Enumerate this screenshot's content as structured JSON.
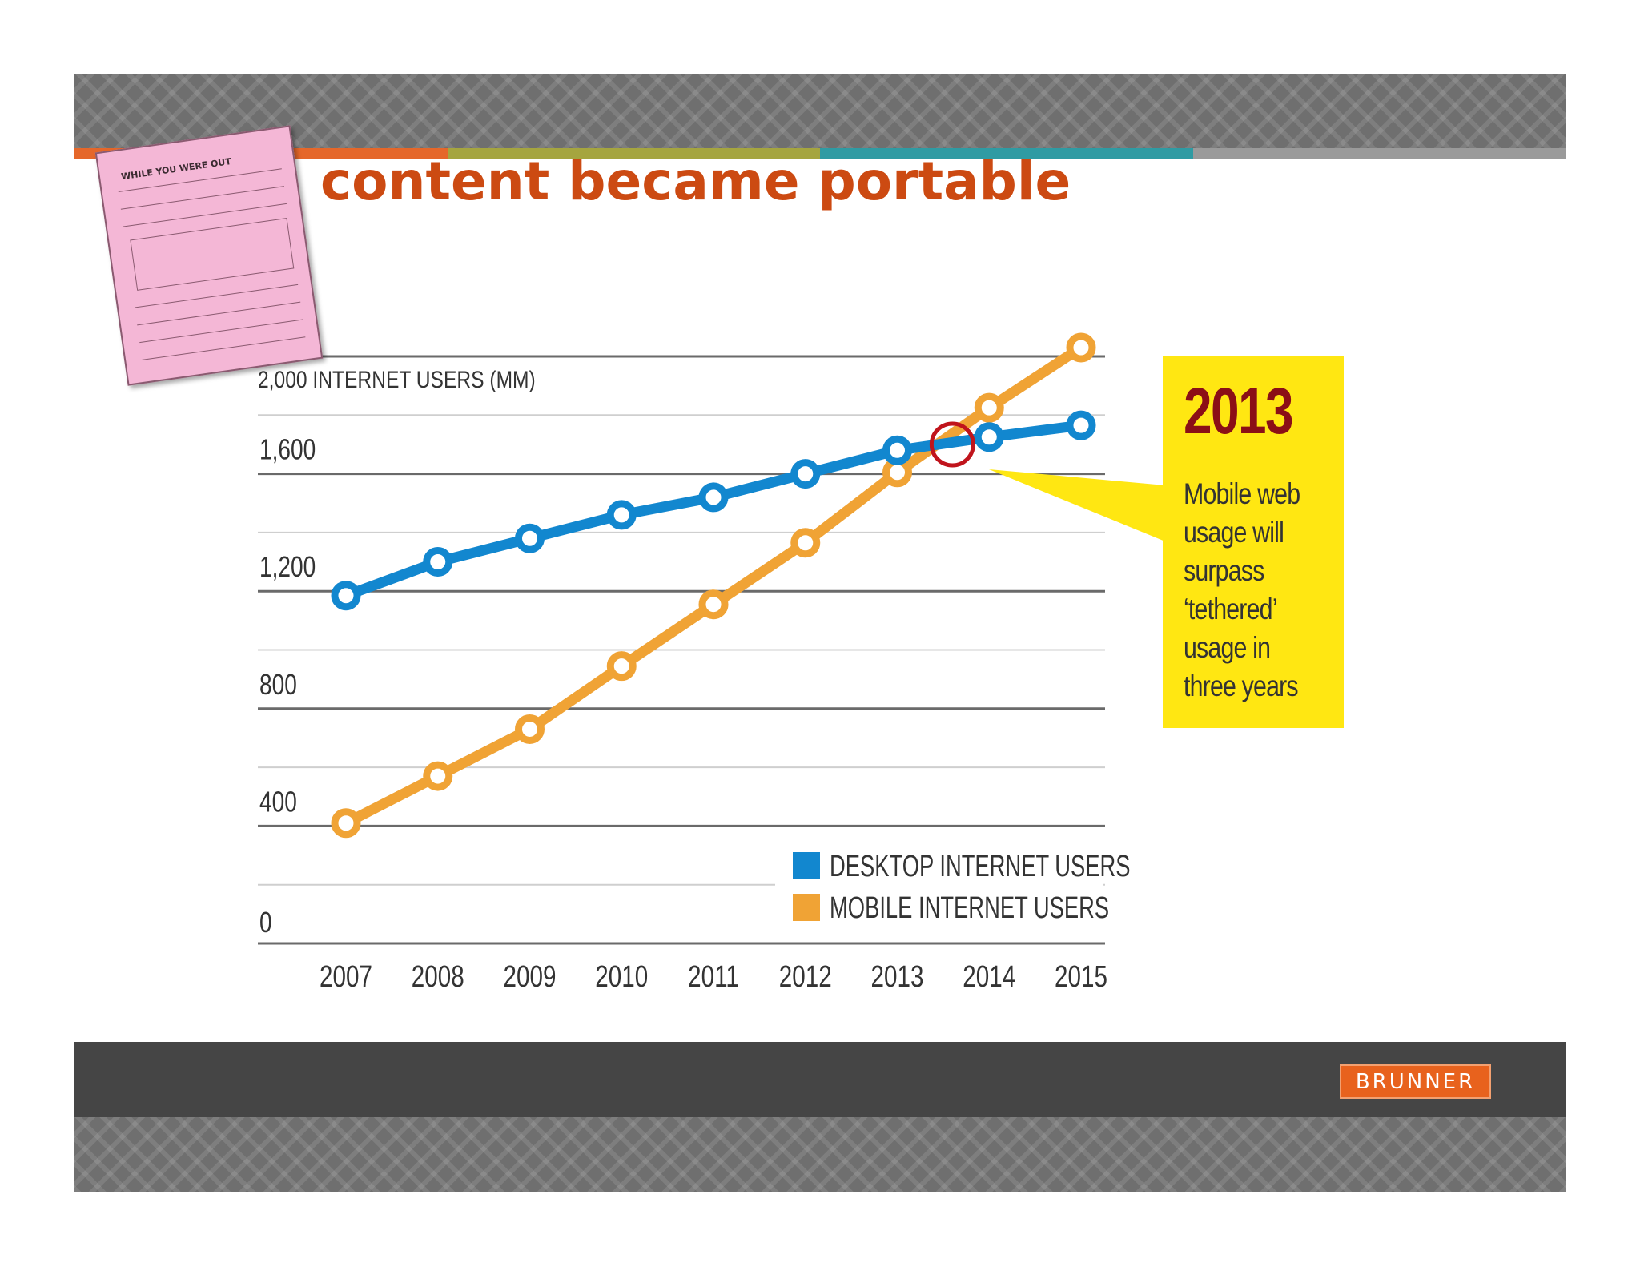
{
  "slide": {
    "title": "content became portable",
    "brand": "BRUNNER",
    "stripe_colors": [
      "#e5672a",
      "#a5a53f",
      "#2f9ba3",
      "#9a9a9a"
    ]
  },
  "note_image": {
    "heading": "WHILE YOU WERE OUT"
  },
  "callout": {
    "year": "2013",
    "text": "Mobile web usage will surpass ‘tethered’ usage in three years",
    "color": "#ffe712"
  },
  "chart_data": {
    "type": "line",
    "title": "2,000 INTERNET USERS (MM)",
    "x": [
      "2007",
      "2008",
      "2009",
      "2010",
      "2011",
      "2012",
      "2013",
      "2014",
      "2015"
    ],
    "ylim": [
      0,
      2000
    ],
    "y_ticks": [
      "0",
      "400",
      "800",
      "1,200",
      "1,600"
    ],
    "grid": true,
    "legend_position": "bottom-right",
    "series": [
      {
        "name": "DESKTOP INTERNET USERS",
        "color": "#1287cf",
        "values": [
          1185,
          1300,
          1380,
          1460,
          1520,
          1600,
          1680,
          1725,
          1765
        ]
      },
      {
        "name": "MOBILE INTERNET USERS",
        "color": "#f0a335",
        "values": [
          410,
          570,
          730,
          945,
          1155,
          1365,
          1605,
          1825,
          2030
        ]
      }
    ],
    "crossover_marker": {
      "x": 2013.6,
      "y": 1700,
      "color": "#c0141c"
    }
  }
}
